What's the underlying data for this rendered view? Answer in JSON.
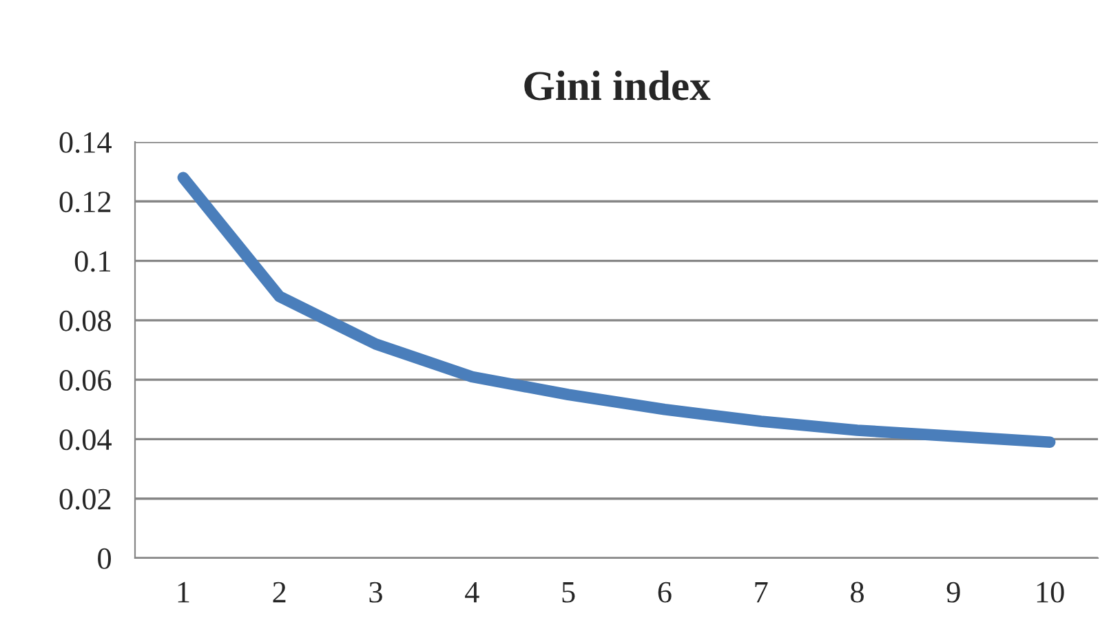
{
  "chart_data": {
    "type": "line",
    "title": "Gini index",
    "categories": [
      "1",
      "2",
      "3",
      "4",
      "5",
      "6",
      "7",
      "8",
      "9",
      "10"
    ],
    "series": [
      {
        "color": "#4a7ebb",
        "values": [
          0.128,
          0.088,
          0.072,
          0.061,
          0.055,
          0.05,
          0.046,
          0.043,
          0.041,
          0.039
        ]
      }
    ],
    "ylim": [
      0,
      0.14
    ],
    "yticks": [
      0,
      0.02,
      0.04,
      0.06,
      0.08,
      0.1,
      0.12,
      0.14
    ],
    "grid": "y",
    "marker": "none",
    "line_style": "solid"
  }
}
